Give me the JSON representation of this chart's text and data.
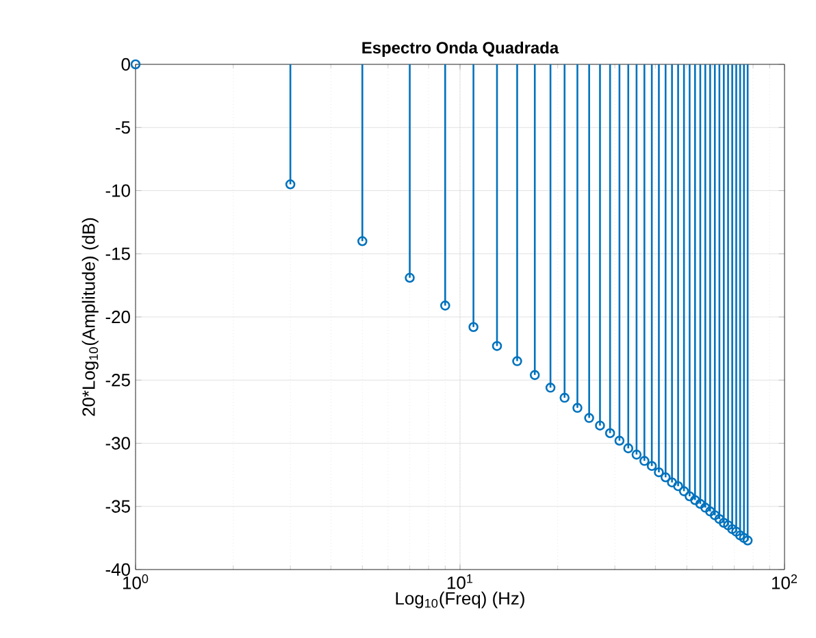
{
  "chart_data": {
    "type": "lollipop",
    "title": "Espectro Onda Quadrada",
    "xlabel": "Log$_{10}$(Freq) (Hz)",
    "ylabel": "20*Log$_{10}$(Amplitude) (dB)",
    "x": [
      1,
      3,
      5,
      7,
      9,
      11,
      13,
      15,
      17,
      19,
      21,
      23,
      25,
      27,
      29,
      31,
      33,
      35,
      37,
      39,
      41,
      43,
      45,
      47,
      49,
      51,
      53,
      55,
      57,
      59,
      61,
      63,
      65,
      67,
      69,
      71,
      73,
      75,
      77
    ],
    "values": [
      0,
      -9.5,
      -14.0,
      -16.9,
      -19.1,
      -20.8,
      -22.3,
      -23.5,
      -24.6,
      -25.6,
      -26.4,
      -27.2,
      -28.0,
      -28.6,
      -29.2,
      -29.8,
      -30.4,
      -30.9,
      -31.4,
      -31.8,
      -32.3,
      -32.7,
      -33.1,
      -33.4,
      -33.8,
      -34.2,
      -34.5,
      -34.8,
      -35.1,
      -35.4,
      -35.7,
      -36.0,
      -36.3,
      -36.5,
      -36.8,
      -37.0,
      -37.3,
      -37.5,
      -37.7
    ],
    "color": "#0072bd",
    "marker": "circle",
    "log": "x",
    "grid": true,
    "xlim": [
      1,
      100
    ],
    "ylim": [
      -40,
      0
    ],
    "xticks": [
      {
        "value": 1,
        "label": "10$^{0}$"
      },
      {
        "value": 10,
        "label": "10$^{1}$"
      },
      {
        "value": 100,
        "label": "10$^{2}$"
      }
    ],
    "yticks": [
      -40,
      -35,
      -30,
      -25,
      -20,
      -15,
      -10,
      -5,
      0
    ]
  }
}
